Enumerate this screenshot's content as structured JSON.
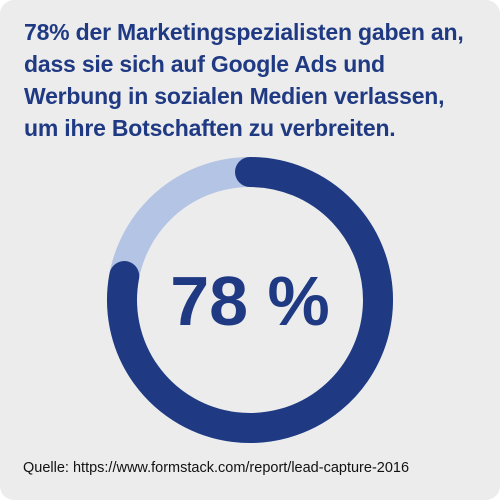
{
  "headline": "78% der Marketingspezialisten gaben an, dass sie sich auf Google Ads und Werbung in sozialen Medien verlassen, um ihre Botschaften zu verbreiten.",
  "source": "Quelle: https://www.formstack.com/report/lead-capture-2016",
  "colors": {
    "background": "#ececec",
    "primary": "#1f3a83",
    "track": "#b4c4e4",
    "text": "#111111"
  },
  "chart_data": {
    "type": "pie",
    "variant": "donut",
    "value": 78,
    "max": 100,
    "center_label": "78 %",
    "series": [
      {
        "value": 78,
        "color": "#1f3a83"
      },
      {
        "value": 22,
        "color": "#b4c4e4"
      }
    ]
  }
}
